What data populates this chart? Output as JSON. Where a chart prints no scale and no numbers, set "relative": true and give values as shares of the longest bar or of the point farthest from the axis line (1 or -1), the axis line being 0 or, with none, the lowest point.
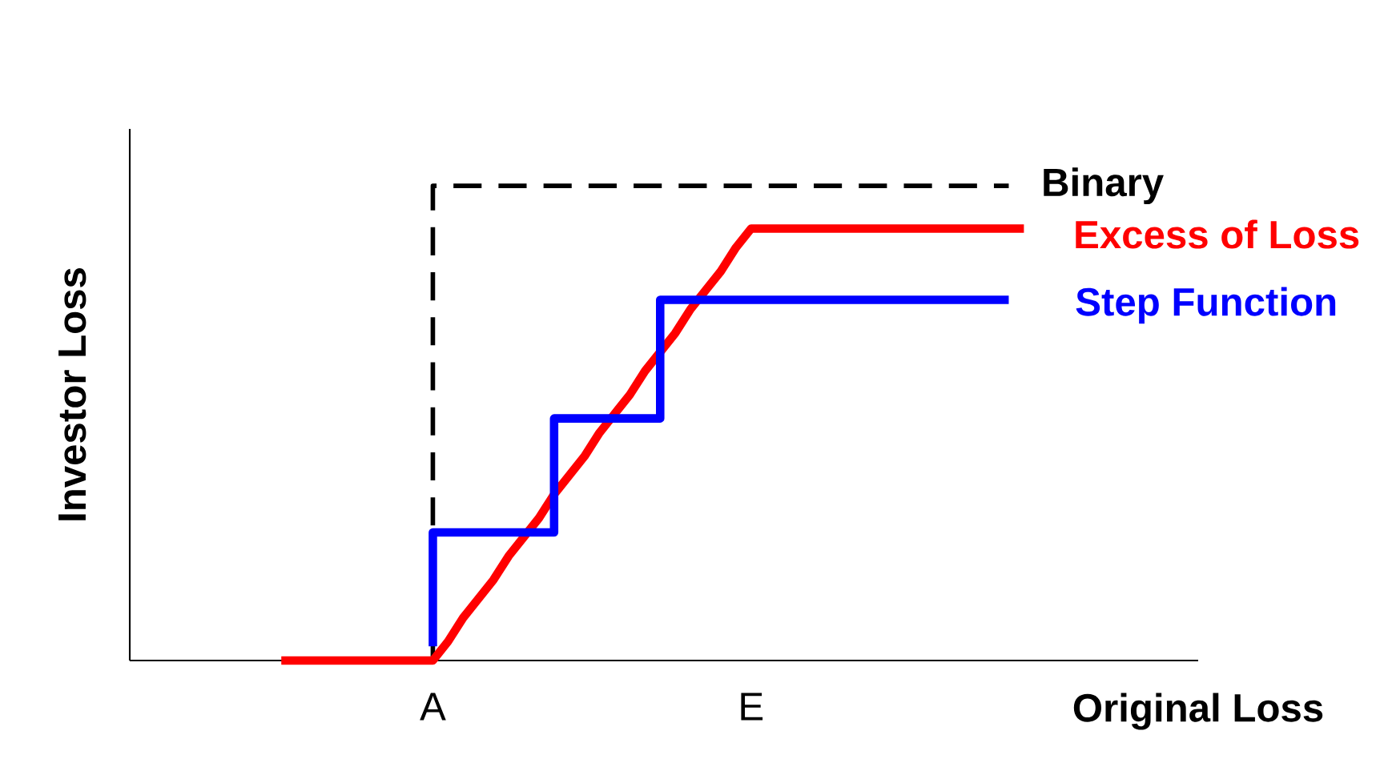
{
  "chart_data": {
    "type": "line",
    "relative": true,
    "xlabel": "Original Loss",
    "ylabel": "Investor Loss",
    "categories": [
      null,
      null,
      null,
      null,
      null,
      null,
      null,
      null,
      null,
      null,
      null,
      null,
      null,
      null,
      null,
      null,
      null,
      null,
      null,
      null,
      "A",
      null,
      null,
      null,
      null,
      null,
      null,
      null,
      null,
      null,
      null,
      null,
      null,
      null,
      null,
      null,
      null,
      null,
      null,
      null,
      null,
      "E",
      null,
      null,
      null,
      null,
      null,
      null,
      null,
      null,
      null,
      null,
      null,
      null,
      null,
      null,
      null,
      null,
      null,
      null,
      null,
      null,
      null,
      null,
      null,
      null,
      null,
      null,
      null,
      null,
      null
    ],
    "legend": false,
    "marker": "none",
    "series": [
      {
        "name": "Binary",
        "type": "step",
        "color": "#000000",
        "line_style": "dashed",
        "values": [
          null,
          null,
          null,
          null,
          null,
          null,
          null,
          null,
          null,
          null,
          null,
          null,
          null,
          null,
          null,
          null,
          null,
          null,
          null,
          null,
          0,
          1,
          1,
          1,
          1,
          1,
          1,
          1,
          1,
          1,
          1,
          1,
          1,
          1,
          1,
          1,
          1,
          1,
          1,
          1,
          1,
          1,
          1,
          1,
          1,
          1,
          1,
          1,
          1,
          1,
          1,
          1,
          1,
          1,
          1,
          1,
          1,
          1,
          1,
          null,
          null,
          null,
          null,
          null,
          null,
          null,
          null,
          null,
          null,
          null,
          null
        ]
      },
      {
        "name": "Excess of Loss",
        "color": "#ff0000",
        "line_style": "solid",
        "values": [
          null,
          null,
          null,
          null,
          null,
          null,
          null,
          null,
          null,
          null,
          0,
          0,
          0,
          0,
          0,
          0,
          0,
          0,
          0,
          0,
          0,
          0.04,
          0.09,
          0.13,
          0.17,
          0.22,
          0.26,
          0.3,
          0.35,
          0.39,
          0.43,
          0.48,
          0.52,
          0.56,
          0.61,
          0.65,
          0.69,
          0.74,
          0.78,
          0.82,
          0.87,
          0.91,
          0.91,
          0.91,
          0.91,
          0.91,
          0.91,
          0.91,
          0.91,
          0.91,
          0.91,
          0.91,
          0.91,
          0.91,
          0.91,
          0.91,
          0.91,
          0.91,
          0.91,
          0.91,
          null,
          null,
          null,
          null,
          null,
          null,
          null,
          null,
          null,
          null,
          null
        ]
      },
      {
        "name": "Step Function",
        "type": "step",
        "color": "#0000ff",
        "line_style": "solid",
        "values": [
          null,
          null,
          null,
          null,
          null,
          null,
          null,
          null,
          null,
          null,
          null,
          null,
          null,
          null,
          null,
          null,
          null,
          null,
          null,
          null,
          0.03,
          0.27,
          0.27,
          0.27,
          0.27,
          0.27,
          0.27,
          0.27,
          0.27,
          0.51,
          0.51,
          0.51,
          0.51,
          0.51,
          0.51,
          0.51,
          0.76,
          0.76,
          0.76,
          0.76,
          0.76,
          0.76,
          0.76,
          0.76,
          0.76,
          0.76,
          0.76,
          0.76,
          0.76,
          0.76,
          0.76,
          0.76,
          0.76,
          0.76,
          0.76,
          0.76,
          0.76,
          0.76,
          0.76,
          null,
          null,
          null,
          null,
          null,
          null,
          null,
          null,
          null,
          null,
          null,
          null
        ]
      }
    ]
  }
}
